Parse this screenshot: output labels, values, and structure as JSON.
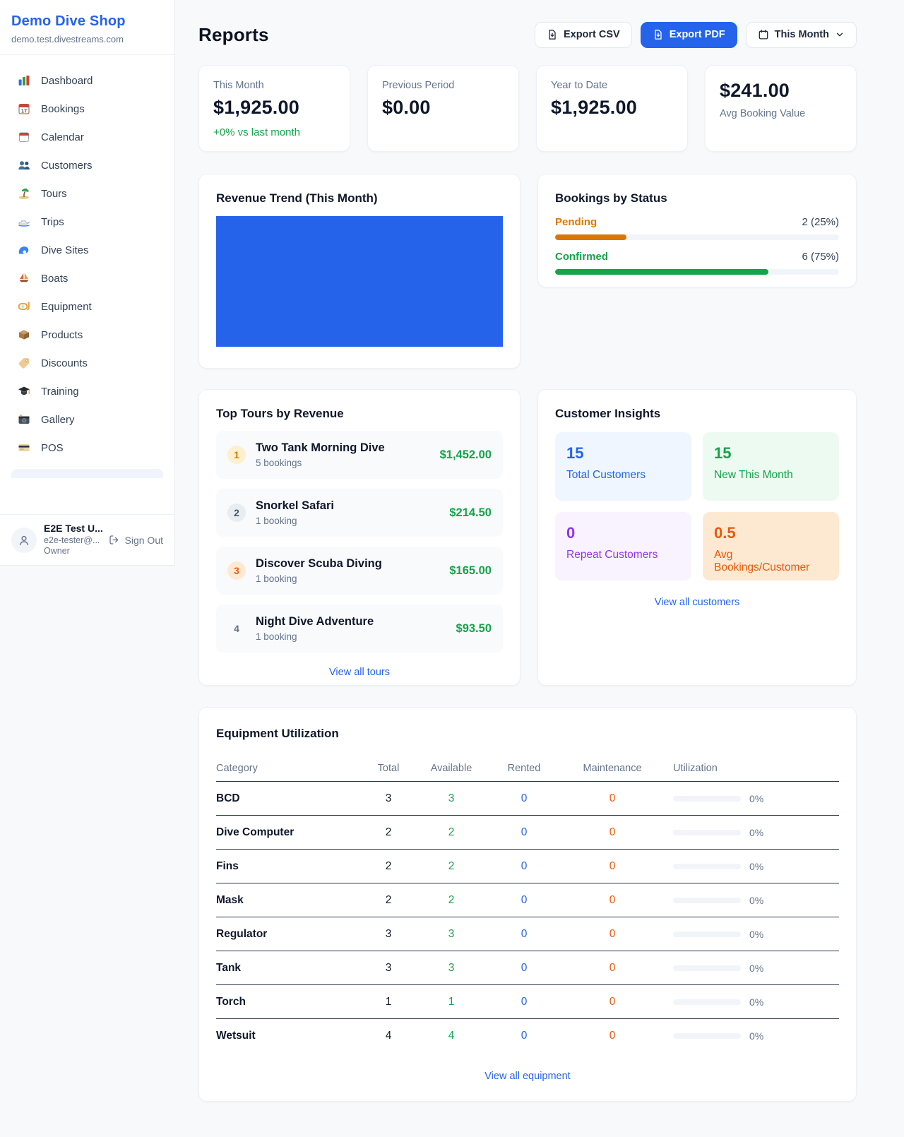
{
  "brand": {
    "name": "Demo Dive Shop",
    "domain": "demo.test.divestreams.com"
  },
  "sidebar": {
    "items": [
      {
        "label": "Dashboard",
        "icon": "bar-chart-icon"
      },
      {
        "label": "Bookings",
        "icon": "calendar-date-icon"
      },
      {
        "label": "Calendar",
        "icon": "tear-off-calendar-icon"
      },
      {
        "label": "Customers",
        "icon": "people-icon"
      },
      {
        "label": "Tours",
        "icon": "island-icon"
      },
      {
        "label": "Trips",
        "icon": "speedboat-icon"
      },
      {
        "label": "Dive Sites",
        "icon": "wave-icon"
      },
      {
        "label": "Boats",
        "icon": "sailboat-icon"
      },
      {
        "label": "Equipment",
        "icon": "diving-mask-icon"
      },
      {
        "label": "Products",
        "icon": "package-icon"
      },
      {
        "label": "Discounts",
        "icon": "tag-icon"
      },
      {
        "label": "Training",
        "icon": "graduation-cap-icon"
      },
      {
        "label": "Gallery",
        "icon": "camera-icon"
      },
      {
        "label": "POS",
        "icon": "credit-card-icon"
      }
    ],
    "user": {
      "name": "E2E Test U...",
      "email": "e2e-tester@...",
      "role": "Owner",
      "sign_out_label": "Sign Out"
    }
  },
  "header": {
    "title": "Reports",
    "export_csv_label": "Export CSV",
    "export_pdf_label": "Export PDF",
    "period_label": "This Month"
  },
  "stats": [
    {
      "label": "This Month",
      "value": "$1,925.00",
      "delta": "+0% vs last month"
    },
    {
      "label": "Previous Period",
      "value": "$0.00"
    },
    {
      "label": "Year to Date",
      "value": "$1,925.00"
    },
    {
      "label": "Avg Booking Value",
      "value": "$241.00"
    }
  ],
  "revenue_trend": {
    "title": "Revenue Trend (This Month)"
  },
  "chart_data": {
    "type": "bar",
    "title": "Revenue Trend (This Month)",
    "categories": [
      "This Month"
    ],
    "values": [
      1925
    ],
    "note": "single solid bar filling the entire plot area",
    "color": "#2563eb"
  },
  "bookings_by_status": {
    "title": "Bookings by Status",
    "rows": [
      {
        "label": "Pending",
        "count_text": "2 (25%)",
        "percent": 25,
        "color": "#d97706"
      },
      {
        "label": "Confirmed",
        "count_text": "6 (75%)",
        "percent": 75,
        "color": "#16a34a"
      }
    ]
  },
  "top_tours": {
    "title": "Top Tours by Revenue",
    "items": [
      {
        "rank": "1",
        "name": "Two Tank Morning Dive",
        "bookings": "5 bookings",
        "revenue": "$1,452.00"
      },
      {
        "rank": "2",
        "name": "Snorkel Safari",
        "bookings": "1 booking",
        "revenue": "$214.50"
      },
      {
        "rank": "3",
        "name": "Discover Scuba Diving",
        "bookings": "1 booking",
        "revenue": "$165.00"
      },
      {
        "rank": "4",
        "name": "Night Dive Adventure",
        "bookings": "1 booking",
        "revenue": "$93.50"
      }
    ],
    "view_all_label": "View all tours"
  },
  "customer_insights": {
    "title": "Customer Insights",
    "tiles": [
      {
        "value": "15",
        "label": "Total Customers",
        "color": "#2563eb",
        "bg": "#eff6ff"
      },
      {
        "value": "15",
        "label": "New This Month",
        "color": "#16a34a",
        "bg": "#edfaf1"
      },
      {
        "value": "0",
        "label": "Repeat Customers",
        "color": "#9333ea",
        "bg": "#f8f3fe"
      },
      {
        "value": "0.5",
        "label": "Avg Bookings/Customer",
        "color": "#ea580c",
        "bg": "#fde9d2"
      }
    ],
    "view_all_label": "View all customers"
  },
  "equipment": {
    "title": "Equipment Utilization",
    "columns": [
      "Category",
      "Total",
      "Available",
      "Rented",
      "Maintenance",
      "Utilization"
    ],
    "rows": [
      {
        "category": "BCD",
        "total": "3",
        "available": "3",
        "rented": "0",
        "maintenance": "0",
        "utilization_pct": 0,
        "utilization": "0%"
      },
      {
        "category": "Dive Computer",
        "total": "2",
        "available": "2",
        "rented": "0",
        "maintenance": "0",
        "utilization_pct": 0,
        "utilization": "0%"
      },
      {
        "category": "Fins",
        "total": "2",
        "available": "2",
        "rented": "0",
        "maintenance": "0",
        "utilization_pct": 0,
        "utilization": "0%"
      },
      {
        "category": "Mask",
        "total": "2",
        "available": "2",
        "rented": "0",
        "maintenance": "0",
        "utilization_pct": 0,
        "utilization": "0%"
      },
      {
        "category": "Regulator",
        "total": "3",
        "available": "3",
        "rented": "0",
        "maintenance": "0",
        "utilization_pct": 0,
        "utilization": "0%"
      },
      {
        "category": "Tank",
        "total": "3",
        "available": "3",
        "rented": "0",
        "maintenance": "0",
        "utilization_pct": 0,
        "utilization": "0%"
      },
      {
        "category": "Torch",
        "total": "1",
        "available": "1",
        "rented": "0",
        "maintenance": "0",
        "utilization_pct": 0,
        "utilization": "0%"
      },
      {
        "category": "Wetsuit",
        "total": "4",
        "available": "4",
        "rented": "0",
        "maintenance": "0",
        "utilization_pct": 0,
        "utilization": "0%"
      }
    ],
    "view_all_label": "View all equipment"
  },
  "colors": {
    "accent_blue": "#2563eb",
    "green": "#16a34a",
    "amber": "#d97706",
    "bronze_orange": "#ea580c",
    "purple": "#9333ea"
  }
}
